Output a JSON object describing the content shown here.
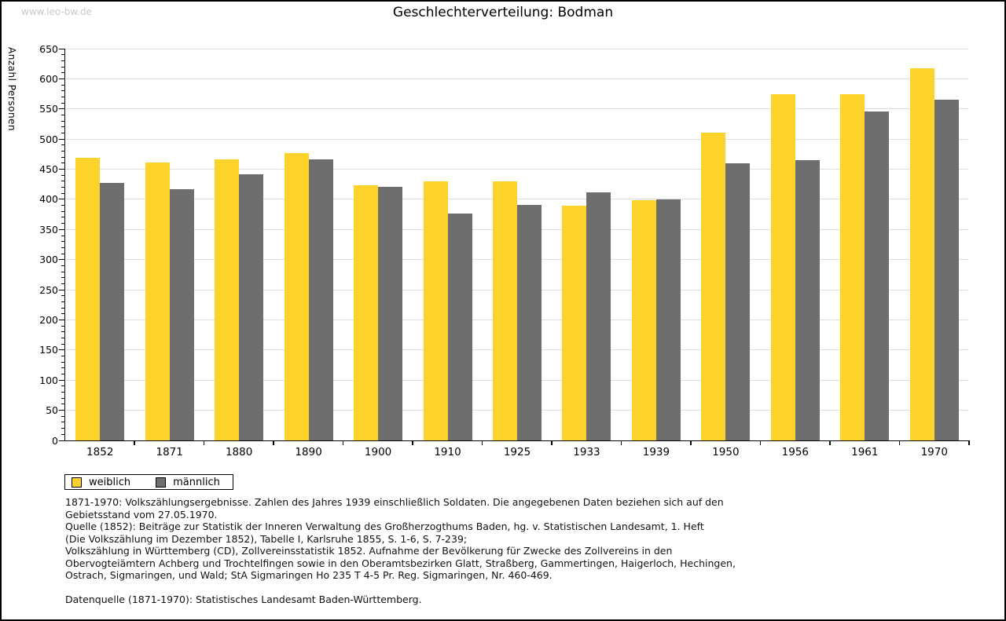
{
  "page": {
    "watermark": "www.leo-bw.de",
    "title": "Geschlechterverteilung: Bodman"
  },
  "chart_data": {
    "type": "bar",
    "title": "Geschlechterverteilung: Bodman",
    "xlabel": "",
    "ylabel": "Anzahl Personen",
    "ylim": [
      0,
      650
    ],
    "ytick_step": 50,
    "ytick_minor_step": 10,
    "grid": true,
    "legend_position": "bottom-left",
    "categories": [
      "1852",
      "1871",
      "1880",
      "1890",
      "1900",
      "1910",
      "1925",
      "1933",
      "1939",
      "1950",
      "1956",
      "1961",
      "1970"
    ],
    "series": [
      {
        "name": "weiblich",
        "color": "#FDD32B",
        "values": [
          469,
          461,
          466,
          477,
          424,
          430,
          430,
          389,
          398,
          511,
          574,
          574,
          618
        ]
      },
      {
        "name": "männlich",
        "color": "#6E6E6E",
        "values": [
          427,
          417,
          442,
          466,
          421,
          376,
          391,
          412,
          400,
          460,
          465,
          546,
          565
        ]
      }
    ]
  },
  "colors": {
    "gridline": "#dedede",
    "axis": "#000000",
    "watermark": "#c9c9c9"
  },
  "footer": {
    "lines": [
      "1871-1970: Volkszählungsergebnisse. Zahlen des Jahres 1939 einschließlich Soldaten. Die angegebenen Daten beziehen sich auf den",
      "Gebietsstand vom 27.05.1970.",
      "Quelle (1852): Beiträge zur Statistik der Inneren Verwaltung des Großherzogthums Baden, hg. v. Statistischen Landesamt, 1. Heft",
      "(Die Volkszählung im Dezember 1852), Tabelle I, Karlsruhe 1855, S. 1-6, S. 7-239;",
      "Volkszählung in Württemberg (CD), Zollvereinsstatistik 1852. Aufnahme der Bevölkerung für Zwecke des Zollvereins in den",
      "Obervogteiämtern Achberg und Trochtelfingen sowie in den Oberamtsbezirken Glatt, Straßberg, Gammertingen, Haigerloch, Hechingen,",
      "Ostrach, Sigmaringen, und Wald; StA Sigmaringen Ho 235 T 4-5 Pr. Reg. Sigmaringen, Nr. 460-469."
    ],
    "datasource": "Datenquelle (1871-1970): Statistisches Landesamt Baden-Württemberg."
  }
}
